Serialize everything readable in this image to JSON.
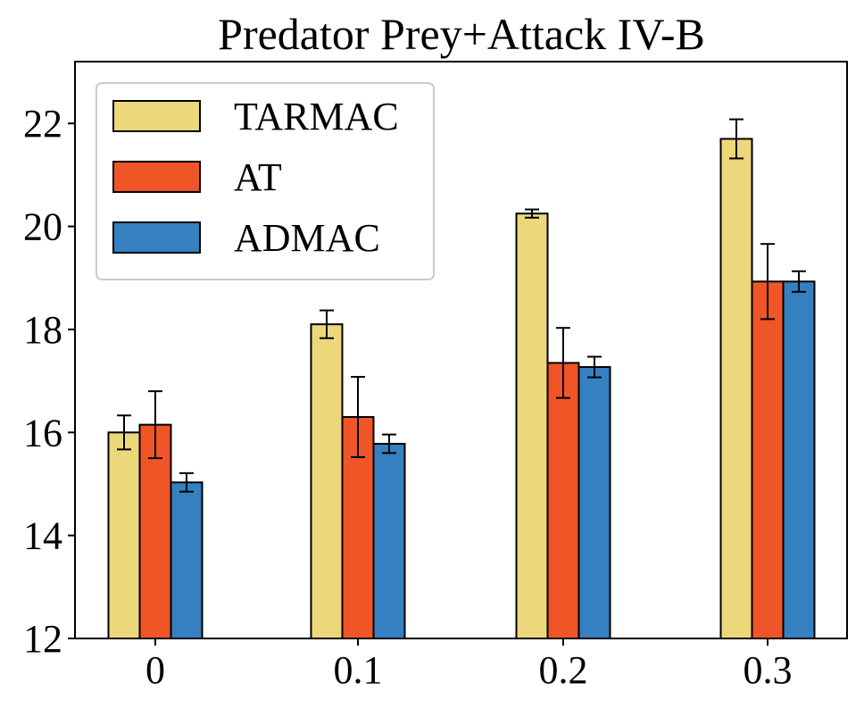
{
  "chart_data": {
    "type": "bar",
    "title": "Predator Prey+Attack IV-B",
    "xlabel": "",
    "ylabel": "",
    "categories": [
      "0",
      "0.1",
      "0.2",
      "0.3"
    ],
    "ylim": [
      12,
      23.2
    ],
    "yticks": [
      12,
      14,
      16,
      18,
      20,
      22
    ],
    "grid": false,
    "legend_position": "top-left",
    "series": [
      {
        "name": "TARMAC",
        "color": "#ecd77b",
        "values": [
          16.0,
          18.1,
          20.25,
          21.7
        ],
        "errors": [
          0.33,
          0.27,
          0.08,
          0.38
        ]
      },
      {
        "name": "AT",
        "color": "#f05528",
        "values": [
          16.15,
          16.3,
          17.35,
          18.93
        ],
        "errors": [
          0.65,
          0.78,
          0.68,
          0.73
        ]
      },
      {
        "name": "ADMAC",
        "color": "#3580c0",
        "values": [
          15.03,
          15.78,
          17.27,
          18.93
        ],
        "errors": [
          0.18,
          0.18,
          0.2,
          0.2
        ]
      }
    ]
  }
}
